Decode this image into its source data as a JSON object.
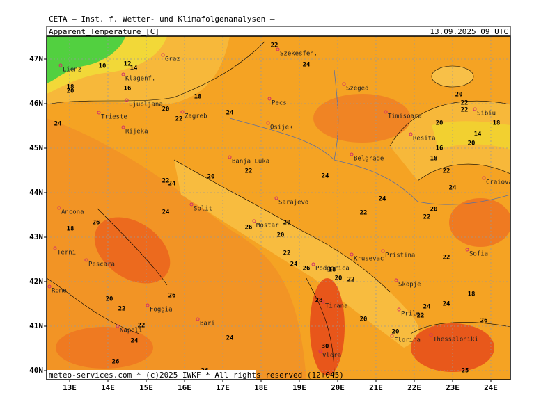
{
  "header": {
    "institute": "CETA — Inst. f. Wetter- und Klimafolgenanalysen —",
    "variable": "Apparent_Temperature_[C]",
    "valid_time": "13.09.2025 09 UTC"
  },
  "map": {
    "lat_labels": [
      "47N",
      "46N",
      "45N",
      "44N",
      "43N",
      "42N",
      "41N",
      "40N"
    ],
    "lon_labels": [
      "13E",
      "14E",
      "15E",
      "16E",
      "17E",
      "18E",
      "19E",
      "20E",
      "21E",
      "22E",
      "23E",
      "24E"
    ],
    "cities": [
      "Graz",
      "Lienz",
      "Klagenf.",
      "Ljubljana",
      "Zagreb",
      "Trieste",
      "Rijeka",
      "Szekesfeh.",
      "Pecs",
      "Szeged",
      "Osijek",
      "Timisoara",
      "Resita",
      "Sibiu",
      "Banja Luka",
      "Belgrade",
      "Craiova",
      "Sarajevo",
      "Split",
      "Mostar",
      "Ancona",
      "Terni",
      "Pescara",
      "Rome",
      "Foggia",
      "Bari",
      "Napoli",
      "Podgorica",
      "Krusevac",
      "Pristina",
      "Skopje",
      "Prilep",
      "Florina",
      "Sofia",
      "Tirana",
      "Vlora",
      "Thessaloniki"
    ],
    "contour_labels": [
      22,
      12,
      14,
      10,
      16,
      18,
      20,
      24,
      18,
      20,
      22,
      24,
      24,
      20,
      22,
      22,
      20,
      18,
      14,
      20,
      16,
      18,
      22,
      24,
      22,
      20,
      22,
      24,
      24,
      24,
      22,
      20,
      22,
      24,
      26,
      18,
      26,
      20,
      20,
      22,
      24,
      26,
      18,
      20,
      22,
      22,
      18,
      24,
      24,
      22,
      20,
      22,
      26,
      22,
      24,
      28,
      20,
      20,
      26,
      24,
      30,
      26,
      26,
      25
    ],
    "footer": "meteo-services.com * (c)2025 IWKF * All rights reserved (12+045)"
  }
}
